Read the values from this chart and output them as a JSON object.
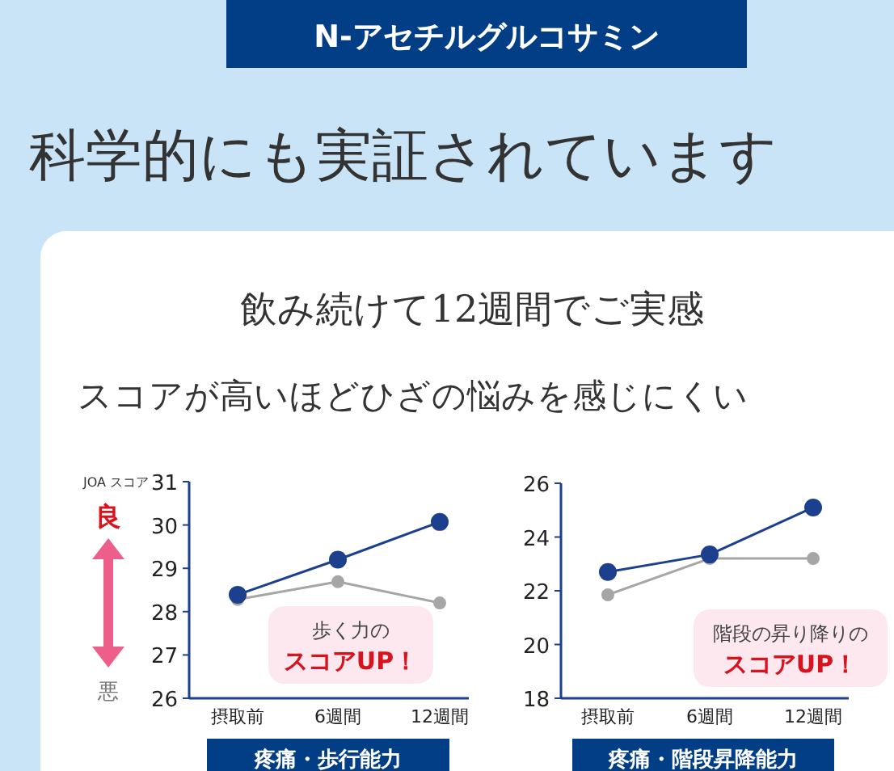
{
  "chart_data": [
    {
      "type": "other",
      "title": "科学的にも実証されています",
      "subtitle": "飲み続けて12週間でご実感",
      "annotations": [
        "N-アセチルグルコサミン",
        "スコアが高いほどひざの悩みを感じにくい"
      ]
    },
    {
      "type": "line",
      "categories": [
        "摂取前",
        "6週間",
        "12週間"
      ],
      "xlabel": "疼痛・歩行能力",
      "ylabel": "JOA スコア",
      "ylim": [
        26,
        31
      ],
      "yticks": [
        26,
        27,
        28,
        29,
        30,
        31
      ],
      "marker": "circle",
      "grid": false,
      "series": [
        {
          "color": "#a6a6a6",
          "values": [
            28.28,
            28.69,
            28.2
          ]
        },
        {
          "color": "#1c3f8e",
          "values": [
            28.39,
            29.2,
            30.07
          ]
        }
      ],
      "annotations": [
        "良",
        "悪",
        "歩く力の",
        "スコアUP！"
      ]
    },
    {
      "type": "line",
      "categories": [
        "摂取前",
        "6週間",
        "12週間"
      ],
      "xlabel": "疼痛・階段昇降能力",
      "ylim": [
        18,
        26
      ],
      "yticks": [
        18,
        20,
        22,
        24,
        26
      ],
      "marker": "circle",
      "grid": false,
      "series": [
        {
          "color": "#a6a6a6",
          "values": [
            21.85,
            23.2,
            23.2
          ]
        },
        {
          "color": "#1c3f8e",
          "values": [
            22.7,
            23.35,
            25.1
          ]
        }
      ],
      "annotations": [
        "階段の昇り降りの",
        "スコアUP！"
      ]
    }
  ]
}
